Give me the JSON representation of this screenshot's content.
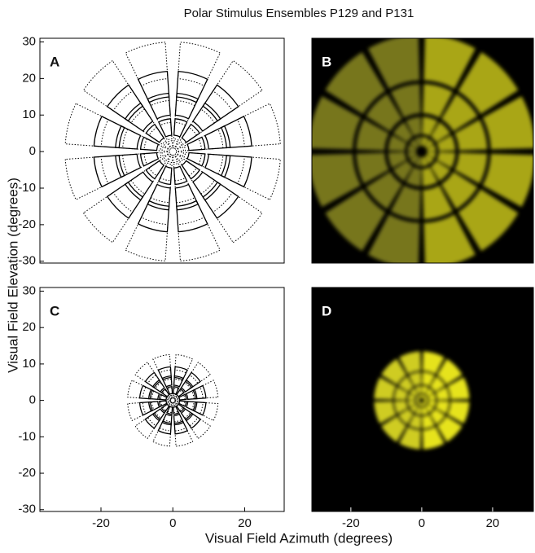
{
  "title": "Polar Stimulus Ensembles P129 and P131",
  "x_label": "Visual Field Azimuth (degrees)",
  "y_label": "Visual Field Elevation (degrees)",
  "chart_data": [
    {
      "type": "outline",
      "label": "A",
      "xlim": [
        -37,
        31
      ],
      "ylim": [
        -30.5,
        31
      ],
      "yticks": [
        -30,
        -20,
        -10,
        0,
        10,
        20,
        30
      ]
    },
    {
      "type": "image",
      "label": "B",
      "xlim": [
        -31,
        31.5
      ],
      "ylim": [
        -30.5,
        31
      ]
    },
    {
      "type": "outline",
      "label": "C",
      "xlim": [
        -37,
        31
      ],
      "ylim": [
        -30.5,
        31
      ],
      "yticks": [
        -30,
        -20,
        -10,
        0,
        10,
        20,
        30
      ],
      "xticks": [
        -20,
        0,
        20
      ]
    },
    {
      "type": "image",
      "label": "D",
      "xlim": [
        -31,
        31.5
      ],
      "ylim": [
        -30.5,
        31
      ],
      "xticks": [
        -20,
        0,
        20
      ]
    }
  ]
}
